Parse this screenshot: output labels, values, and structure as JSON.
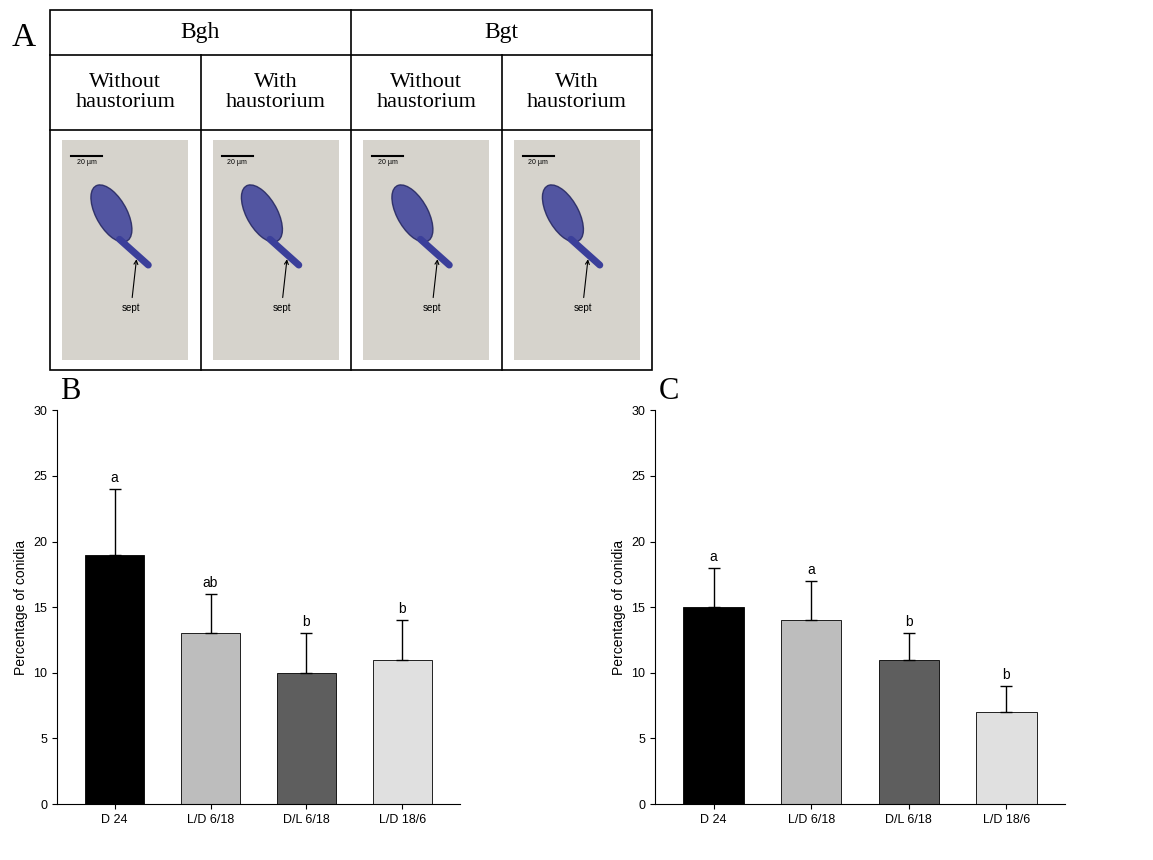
{
  "panel_a": {
    "label": "A",
    "groups": [
      {
        "name": "Bgh",
        "columns": [
          "Without\nhaustorium",
          "With\nhaustorium"
        ]
      },
      {
        "name": "Bgt",
        "columns": [
          "Without\nhaustorium",
          "With\nhaustorium"
        ]
      }
    ],
    "scale_bar": "20 µm",
    "septum_label": "sept"
  },
  "chart_data": [
    {
      "panel": "B",
      "type": "bar",
      "categories": [
        "D 24",
        "L/D 6/18",
        "D/L 6/18",
        "L/D 18/6"
      ],
      "values": [
        19,
        13,
        10,
        11
      ],
      "error": [
        5,
        3,
        3,
        3
      ],
      "letters": [
        "a",
        "ab",
        "b",
        "b"
      ],
      "colors": [
        "#000000",
        "#bdbdbd",
        "#5e5e5e",
        "#e0e0e0"
      ],
      "ylabel": "Percentage of conidia",
      "ylim": [
        0,
        30
      ],
      "yticks": [
        0,
        5,
        10,
        15,
        20,
        25,
        30
      ]
    },
    {
      "panel": "C",
      "type": "bar",
      "categories": [
        "D 24",
        "L/D 6/18",
        "D/L 6/18",
        "L/D 18/6"
      ],
      "values": [
        15,
        14,
        11,
        7
      ],
      "error": [
        3,
        3,
        2,
        2
      ],
      "letters": [
        "a",
        "a",
        "b",
        "b"
      ],
      "colors": [
        "#000000",
        "#bdbdbd",
        "#5e5e5e",
        "#e0e0e0"
      ],
      "ylabel": "Percentage of conidia",
      "ylim": [
        0,
        30
      ],
      "yticks": [
        0,
        5,
        10,
        15,
        20,
        25,
        30
      ]
    }
  ]
}
